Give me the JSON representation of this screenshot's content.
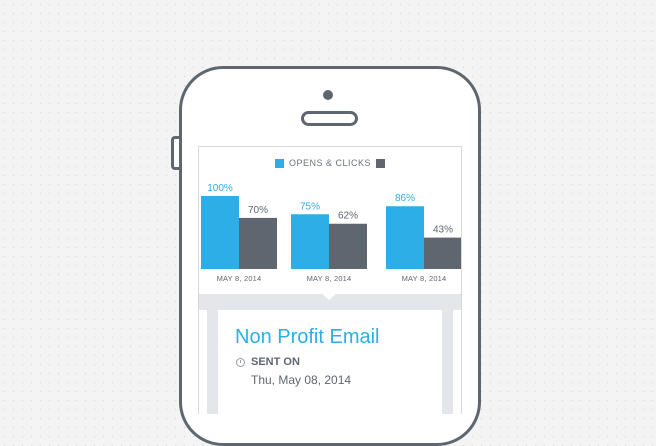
{
  "legend": {
    "label": "OPENS & CLICKS"
  },
  "colors": {
    "opens": "#2eaee6",
    "clicks": "#5f6670",
    "accent": "#2eaee6"
  },
  "chart_data": {
    "type": "bar",
    "categories": [
      "MAY 8, 2014",
      "MAY 8, 2014",
      "MAY 8, 2014"
    ],
    "series": [
      {
        "values": [
          100,
          75,
          86
        ],
        "labels": [
          "100%",
          "75%",
          "86%"
        ],
        "color": "#2eaee6"
      },
      {
        "values": [
          70,
          62,
          43
        ],
        "labels": [
          "70%",
          "62%",
          "43%"
        ],
        "color": "#5f6670"
      }
    ],
    "ylim": [
      0,
      100
    ],
    "title": "OPENS & CLICKS",
    "grid": false
  },
  "campaign": {
    "title": "Non Profit Email",
    "sent_label": "SENT ON",
    "sent_date": "Thu, May 08, 2014",
    "clock_icon": "clock-icon"
  }
}
